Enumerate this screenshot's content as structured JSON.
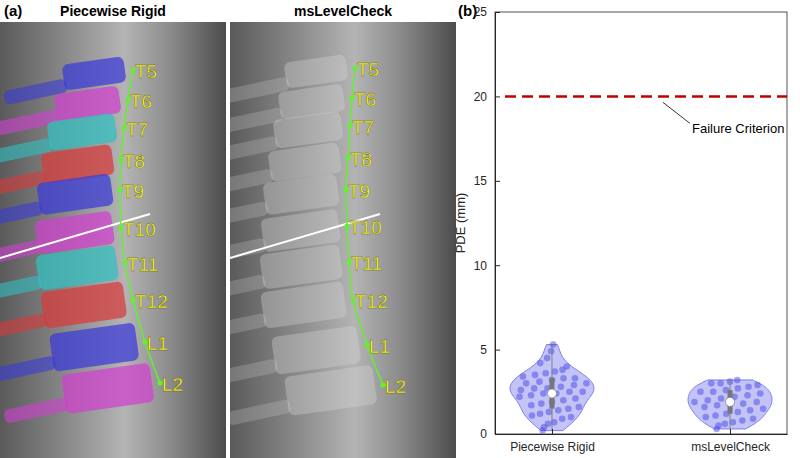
{
  "image_panel": {
    "label": "(a)",
    "images": [
      {
        "title": "Piecewise Rigid",
        "levels": [
          "T5",
          "T6",
          "T7",
          "T8",
          "T9",
          "T10",
          "T11",
          "T12",
          "L1",
          "L2"
        ]
      },
      {
        "title": "msLevelCheck",
        "levels": [
          "T5",
          "T6",
          "T7",
          "T8",
          "T9",
          "T10",
          "T11",
          "T12",
          "L1",
          "L2"
        ]
      }
    ]
  },
  "chart_data": {
    "type": "violin",
    "title": "(b)",
    "y_label": "PDE (mm)",
    "categories": [
      "Piecewise Rigid",
      "msLevelCheck"
    ],
    "values": [
      [
        0.2,
        0.4,
        0.6,
        0.7,
        0.9,
        1.0,
        1.1,
        1.2,
        1.3,
        1.4,
        1.5,
        1.6,
        1.7,
        1.8,
        1.9,
        2.0,
        2.1,
        2.2,
        2.3,
        2.4,
        2.4,
        2.5,
        2.5,
        2.6,
        2.7,
        2.7,
        2.8,
        2.9,
        3.0,
        3.0,
        3.1,
        3.2,
        3.3,
        3.3,
        3.4,
        3.5,
        3.6,
        3.7,
        3.8,
        4.0,
        4.2,
        4.5,
        4.9,
        5.3
      ],
      [
        0.3,
        0.5,
        0.6,
        0.7,
        0.8,
        0.9,
        1.0,
        1.1,
        1.2,
        1.3,
        1.4,
        1.5,
        1.6,
        1.7,
        1.8,
        1.8,
        1.9,
        1.9,
        2.0,
        2.1,
        2.2,
        2.3,
        2.4,
        2.5,
        2.5,
        2.6,
        2.7,
        2.8,
        2.9,
        3.0,
        3.0,
        3.1,
        3.2
      ]
    ],
    "medians": [
      2.4,
      1.9
    ],
    "quartiles": [
      [
        1.5,
        3.3
      ],
      [
        1.2,
        2.6
      ]
    ],
    "color": "#7b7bf0",
    "reference_line": {
      "value": 20,
      "label": "Failure Criterion",
      "color": "#c00000",
      "line_style": "dashed"
    },
    "ylim": [
      0,
      25
    ],
    "yticks": [
      0,
      5,
      10,
      15,
      20,
      25
    ],
    "grid": false
  }
}
